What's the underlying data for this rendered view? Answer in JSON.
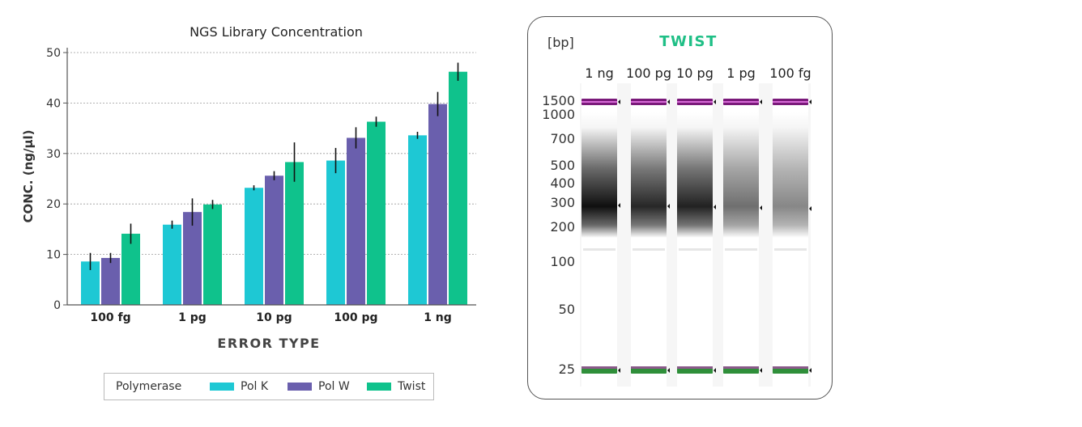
{
  "chart_data": [
    {
      "type": "bar",
      "title": "NGS Library Concentration",
      "xlabel": "ERROR TYPE",
      "ylabel": "CONC. (ng/µl)",
      "ylim": [
        0,
        50
      ],
      "yticks": [
        "0",
        "10",
        "20",
        "30",
        "40",
        "50"
      ],
      "grid": "horizontal dashed",
      "categories": [
        "100 fg",
        "1 pg",
        "10 pg",
        "100 pg",
        "1 ng"
      ],
      "series": [
        {
          "name": "Pol K",
          "color": "#1ec8d4",
          "values": [
            8.6,
            15.9,
            23.2,
            28.6,
            33.6
          ],
          "errors": [
            1.7,
            0.8,
            0.5,
            2.5,
            0.7
          ]
        },
        {
          "name": "Pol W",
          "color": "#6a5fad",
          "values": [
            9.3,
            18.4,
            25.6,
            33.1,
            39.8
          ],
          "errors": [
            1.0,
            2.7,
            0.9,
            2.1,
            2.4
          ]
        },
        {
          "name": "Twist",
          "color": "#0fc28c",
          "values": [
            14.1,
            19.9,
            28.3,
            36.3,
            46.2
          ],
          "errors": [
            2.0,
            0.9,
            3.9,
            1.0,
            1.8
          ]
        }
      ],
      "legend": {
        "title": "Polymerase",
        "position": "bottom"
      }
    },
    {
      "type": "gel",
      "title": "TWIST",
      "unit_label": "[bp]",
      "lanes": [
        "1 ng",
        "100 pg",
        "10 pg",
        "1 pg",
        "100 fg"
      ],
      "ladder_bp": [
        "1500",
        "1000",
        "700",
        "500",
        "400",
        "300",
        "200",
        "100",
        "50",
        "25"
      ],
      "upper_marker_bp": 1500,
      "lower_marker_bp": 25,
      "smear_intensity": [
        1.0,
        0.9,
        0.92,
        0.6,
        0.5
      ],
      "upper_marker_color": "#7a1a7a",
      "lower_marker_color": "#2f8f3a"
    }
  ]
}
